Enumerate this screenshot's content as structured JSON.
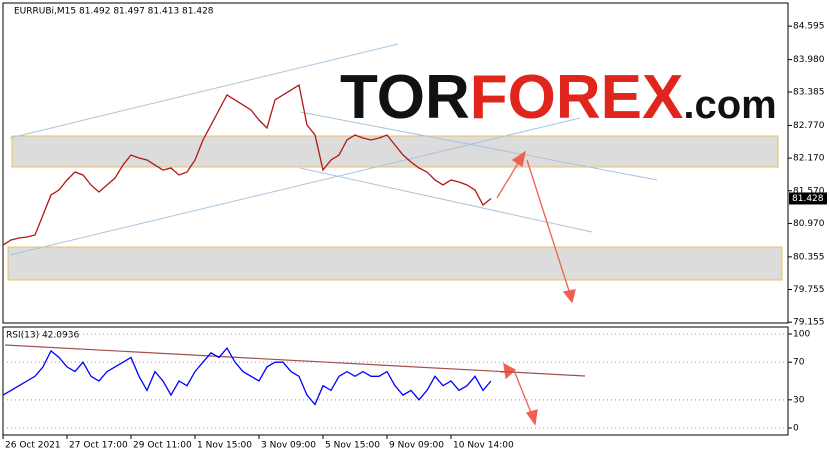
{
  "watermark": {
    "part1": "TOR",
    "part2": "FOREX",
    "part3": ".com"
  },
  "chart_data": [
    {
      "type": "line",
      "title": "EURRUBi,M15  81.492 81.497 81.413 81.428",
      "series": [
        {
          "name": "EURRUBi",
          "color": "#b01818",
          "values": [
            80.573,
            80.665,
            80.702,
            80.72,
            80.757,
            81.125,
            81.492,
            81.584,
            81.768,
            81.915,
            81.86,
            81.676,
            81.547,
            81.676,
            81.804,
            82.043,
            82.227,
            82.172,
            82.135,
            82.043,
            81.951,
            81.988,
            81.86,
            81.915,
            82.135,
            82.503,
            82.778,
            83.054,
            83.33,
            83.238,
            83.146,
            83.054,
            82.87,
            82.723,
            83.238,
            83.33,
            83.421,
            83.513,
            82.778,
            82.595,
            81.951,
            82.135,
            82.227,
            82.503,
            82.595,
            82.539,
            82.503,
            82.539,
            82.595,
            82.411,
            82.227,
            82.098,
            81.988,
            81.915,
            81.768,
            81.676,
            81.768,
            81.731,
            81.676,
            81.584,
            81.308,
            81.428
          ]
        }
      ],
      "last_price": 81.428,
      "ylim": [
        79.14,
        85.02
      ],
      "yticks": [
        84.595,
        {
          "value": 83.98,
          "label": "83.980"
        },
        83.385,
        {
          "value": 82.77,
          "label": "82.770"
        },
        {
          "value": 82.17,
          "label": "82.170"
        },
        {
          "value": 81.57,
          "label": "81.570"
        },
        {
          "value": 80.97,
          "label": "80.970"
        },
        80.355,
        79.755,
        79.155
      ]
    },
    {
      "type": "line",
      "title": "RSI(13) 42.0936",
      "categories": [
        "26 Oct 2021",
        null,
        null,
        null,
        null,
        null,
        null,
        null,
        "27 Oct 17:00",
        null,
        null,
        null,
        null,
        null,
        null,
        null,
        "29 Oct 11:00",
        null,
        null,
        null,
        null,
        null,
        null,
        null,
        "1 Nov 15:00",
        null,
        null,
        null,
        null,
        null,
        null,
        null,
        "3 Nov 09:00",
        null,
        null,
        null,
        null,
        null,
        null,
        null,
        "5 Nov 15:00",
        null,
        null,
        null,
        null,
        null,
        null,
        null,
        "9 Nov 09:00",
        null,
        null,
        null,
        null,
        null,
        null,
        null,
        "10 Nov 14:00",
        null,
        null,
        null,
        null,
        null
      ],
      "series": [
        {
          "name": "RSI(13)",
          "color": "#0000ff",
          "values": [
            35,
            40,
            45,
            50,
            55,
            65,
            82,
            75,
            65,
            60,
            70,
            55,
            50,
            60,
            65,
            70,
            75,
            55,
            40,
            60,
            50,
            35,
            50,
            45,
            60,
            70,
            80,
            75,
            85,
            70,
            60,
            55,
            50,
            65,
            70,
            70,
            60,
            55,
            35,
            25,
            45,
            40,
            55,
            60,
            55,
            60,
            55,
            55,
            60,
            45,
            35,
            40,
            30,
            40,
            55,
            45,
            50,
            40,
            45,
            55,
            40,
            50
          ]
        }
      ],
      "ylim": [
        -7.4,
        107.4
      ],
      "yticks": [
        100,
        70,
        30,
        0
      ],
      "grid": true
    }
  ]
}
